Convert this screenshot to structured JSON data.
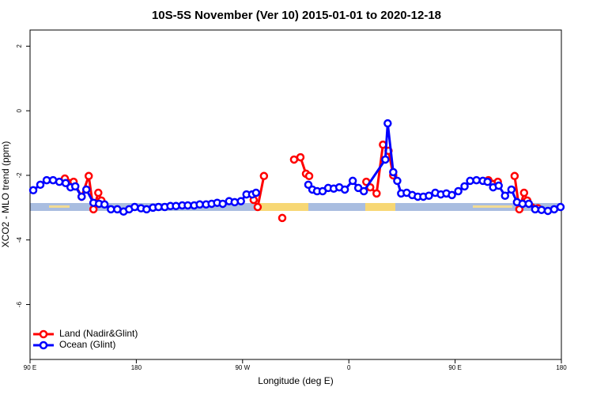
{
  "chart_data": {
    "type": "line",
    "title": "10S-5S November (Ver 10)   2015-01-01 to 2020-12-18",
    "xlabel": "Longitude (deg E)",
    "ylabel": "XCO2 - MLO trend (ppm)",
    "xlim": [
      90,
      540
    ],
    "ylim": [
      -7.7,
      2.5
    ],
    "xticks": [
      {
        "value": 90,
        "label": "90 E"
      },
      180,
      {
        "value": 270,
        "label": "90 W"
      },
      {
        "value": 360,
        "label": "0"
      },
      {
        "value": 450,
        "label": "90 E"
      },
      {
        "value": 540,
        "label": "180"
      }
    ],
    "yticks": [
      2,
      0,
      -2,
      -4,
      -6
    ],
    "legend": "bottom-left",
    "series": [
      {
        "name": "Land (Nadir&Glint)",
        "color": "#ff0000",
        "x": [
          119.5,
          126.9,
          133.7,
          139.7,
          143.7,
          147.8,
          150.4,
          null,
          279.4,
          282.8,
          288.1,
          null,
          303.6,
          null,
          313.6,
          319.0,
          323.7,
          326.4,
          null,
          374.8,
          378.1,
          383.5,
          388.9,
          393.6,
          397.6,
          null,
          478.2,
          486.2,
          null,
          500.4,
          504.4,
          508.4,
          511.1,
          520.2
        ],
        "values": [
          -2.1,
          -2.2,
          -2.66,
          -2.02,
          -3.05,
          -2.54,
          -2.78,
          null,
          -2.76,
          -2.98,
          -2.02,
          null,
          -3.32,
          null,
          -1.51,
          -1.44,
          -1.95,
          -2.02,
          null,
          -2.2,
          -2.37,
          -2.56,
          -1.05,
          -1.24,
          -2.0,
          null,
          -2.15,
          -2.2,
          null,
          -2.02,
          -3.05,
          -2.54,
          -2.78,
          -3.02
        ]
      },
      {
        "name": "Ocean (Glint)",
        "color": "#0000ff",
        "x": [
          92.7,
          98.7,
          104.1,
          109.5,
          114.8,
          120.2,
          124.3,
          128.3,
          133.7,
          137.7,
          143.7,
          148.4,
          153.1,
          158.5,
          163.9,
          169.2,
          173.9,
          178.6,
          184.0,
          188.7,
          194.1,
          198.8,
          204.1,
          208.9,
          213.6,
          218.9,
          223.6,
          229.0,
          233.7,
          239.1,
          243.8,
          248.5,
          253.2,
          258.6,
          263.3,
          268.6,
          273.3,
          278.1,
          281.4,
          null,
          325.7,
          329.1,
          333.1,
          337.8,
          342.5,
          347.2,
          351.9,
          356.6,
          363.3,
          368.0,
          372.7,
          390.9,
          392.9,
          397.6,
          401.0,
          404.3,
          409.0,
          413.7,
          418.4,
          423.1,
          427.8,
          433.2,
          437.9,
          442.6,
          447.3,
          452.7,
          458.0,
          462.7,
          468.1,
          473.5,
          477.5,
          482.2,
          486.9,
          492.3,
          497.7,
          502.4,
          507.1,
          512.4,
          517.8,
          523.2,
          528.6,
          533.9,
          539.3
        ],
        "values": [
          -2.46,
          -2.29,
          -2.15,
          -2.15,
          -2.2,
          -2.24,
          -2.37,
          -2.34,
          -2.66,
          -2.44,
          -2.85,
          -2.88,
          -2.9,
          -3.05,
          -3.05,
          -3.12,
          -3.05,
          -2.98,
          -3.02,
          -3.05,
          -3.0,
          -2.98,
          -2.98,
          -2.95,
          -2.95,
          -2.93,
          -2.93,
          -2.93,
          -2.9,
          -2.9,
          -2.88,
          -2.85,
          -2.88,
          -2.8,
          -2.83,
          -2.8,
          -2.59,
          -2.59,
          -2.54,
          null,
          -2.29,
          -2.44,
          -2.49,
          -2.49,
          -2.39,
          -2.41,
          -2.37,
          -2.44,
          -2.17,
          -2.39,
          -2.49,
          -1.51,
          -0.39,
          -1.9,
          -2.17,
          -2.56,
          -2.54,
          -2.61,
          -2.66,
          -2.66,
          -2.63,
          -2.54,
          -2.59,
          -2.56,
          -2.61,
          -2.49,
          -2.34,
          -2.17,
          -2.15,
          -2.17,
          -2.2,
          -2.37,
          -2.32,
          -2.63,
          -2.44,
          -2.83,
          -2.88,
          -2.88,
          -3.05,
          -3.07,
          -3.1,
          -3.05,
          -2.98
        ]
      }
    ]
  }
}
